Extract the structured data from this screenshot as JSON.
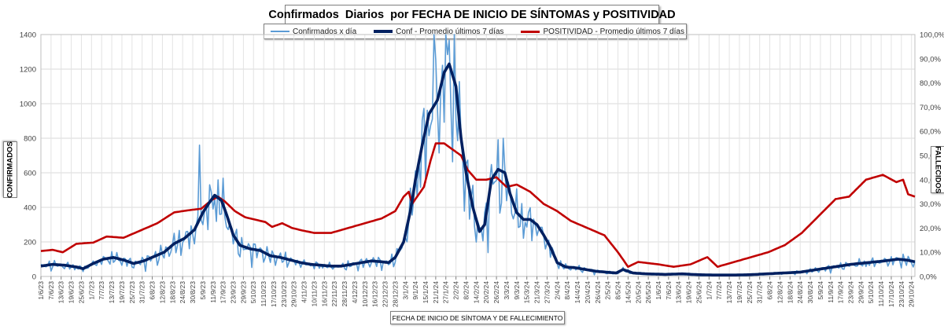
{
  "chart_data": {
    "type": "line",
    "title": "Confirmados  Diarios  por FECHA DE INICIO DE SÍNTOMAS y POSITIVIDAD",
    "xlabel": "FECHA DE INICIO DE SÍNTOMA  Y DE FALLECIMIENTO",
    "ylabel_left": "CONFIRMADOS",
    "ylabel_right": "FALLECIDOS",
    "ylim_left": [
      0,
      1400
    ],
    "yticks_left": [
      "0",
      "200",
      "400",
      "600",
      "800",
      "1000",
      "1200",
      "1400"
    ],
    "ylim_right": [
      0,
      100
    ],
    "yticks_right": [
      "0,0%",
      "10,0%",
      "20,0%",
      "30,0%",
      "40,0%",
      "50,0%",
      "60,0%",
      "70,0%",
      "80,0%",
      "90,0%",
      "100,0%"
    ],
    "date_start": "2023-06-01",
    "date_end": "2024-10-31",
    "x_tick_labels": [
      "1/6/23",
      "7/6/23",
      "13/6/23",
      "19/6/23",
      "25/6/23",
      "1/7/23",
      "7/7/23",
      "13/7/23",
      "19/7/23",
      "25/7/23",
      "31/7/23",
      "6/8/23",
      "12/8/23",
      "18/8/23",
      "24/8/23",
      "30/8/23",
      "5/9/23",
      "11/9/23",
      "17/9/23",
      "23/9/23",
      "29/9/23",
      "5/10/23",
      "11/10/23",
      "17/10/23",
      "23/10/23",
      "29/10/23",
      "4/11/23",
      "10/11/23",
      "16/11/23",
      "22/11/23",
      "28/11/23",
      "4/12/23",
      "10/12/23",
      "16/12/23",
      "22/12/23",
      "28/12/23",
      "3/1/24",
      "9/1/24",
      "15/1/24",
      "21/1/24",
      "27/1/24",
      "2/2/24",
      "8/2/24",
      "14/2/24",
      "20/2/24",
      "26/2/24",
      "3/3/24",
      "9/3/24",
      "15/3/24",
      "21/3/24",
      "27/3/24",
      "2/4/24",
      "8/4/24",
      "14/4/24",
      "20/4/24",
      "26/4/24",
      "2/5/24",
      "8/5/24",
      "14/5/24",
      "20/5/24",
      "26/5/24",
      "1/6/24",
      "7/6/24",
      "13/6/24",
      "19/6/24",
      "25/6/24",
      "1/7/24",
      "7/7/24",
      "13/7/24",
      "19/7/24",
      "25/7/24",
      "31/7/24",
      "6/8/24",
      "12/8/24",
      "18/8/24",
      "24/8/24",
      "30/8/24",
      "5/9/24",
      "11/9/24",
      "17/9/24",
      "23/9/24",
      "29/9/24",
      "5/10/24",
      "11/10/24",
      "17/10/24",
      "23/10/24",
      "29/10/24"
    ],
    "series": [
      {
        "name": "Confirmados x día",
        "axis": "left",
        "color": "#5b9bd5",
        "shape": "daily noisy (±35% weekday variation) around the 7-day average; spikes to ~760 on 3/9/23 and >1400 in mid-Jan 2024",
        "peaks": [
          {
            "date": "2023-09-03",
            "value": 760
          },
          {
            "date": "2024-01-20",
            "value": 1400
          },
          {
            "date": "2024-01-27",
            "value": 1400
          }
        ]
      },
      {
        "name": "Conf - Promedio últimos 7 días",
        "axis": "left",
        "color": "#002060",
        "points": [
          [
            "2023-06-01",
            60
          ],
          [
            "2023-06-08",
            70
          ],
          [
            "2023-06-15",
            65
          ],
          [
            "2023-06-22",
            55
          ],
          [
            "2023-06-26",
            45
          ],
          [
            "2023-07-02",
            75
          ],
          [
            "2023-07-08",
            100
          ],
          [
            "2023-07-14",
            110
          ],
          [
            "2023-07-20",
            95
          ],
          [
            "2023-07-26",
            75
          ],
          [
            "2023-08-01",
            90
          ],
          [
            "2023-08-07",
            115
          ],
          [
            "2023-08-13",
            140
          ],
          [
            "2023-08-19",
            190
          ],
          [
            "2023-08-25",
            220
          ],
          [
            "2023-08-31",
            270
          ],
          [
            "2023-09-05",
            370
          ],
          [
            "2023-09-09",
            430
          ],
          [
            "2023-09-12",
            470
          ],
          [
            "2023-09-16",
            440
          ],
          [
            "2023-09-19",
            360
          ],
          [
            "2023-09-23",
            240
          ],
          [
            "2023-09-27",
            180
          ],
          [
            "2023-10-03",
            160
          ],
          [
            "2023-10-09",
            150
          ],
          [
            "2023-10-15",
            120
          ],
          [
            "2023-10-21",
            110
          ],
          [
            "2023-10-27",
            95
          ],
          [
            "2023-11-02",
            80
          ],
          [
            "2023-11-08",
            70
          ],
          [
            "2023-11-14",
            65
          ],
          [
            "2023-11-20",
            60
          ],
          [
            "2023-11-26",
            60
          ],
          [
            "2023-12-02",
            70
          ],
          [
            "2023-12-08",
            80
          ],
          [
            "2023-12-14",
            90
          ],
          [
            "2023-12-20",
            85
          ],
          [
            "2023-12-24",
            80
          ],
          [
            "2023-12-28",
            110
          ],
          [
            "2024-01-02",
            200
          ],
          [
            "2024-01-06",
            380
          ],
          [
            "2024-01-09",
            560
          ],
          [
            "2024-01-13",
            760
          ],
          [
            "2024-01-17",
            940
          ],
          [
            "2024-01-22",
            1020
          ],
          [
            "2024-01-26",
            1180
          ],
          [
            "2024-01-29",
            1230
          ],
          [
            "2024-02-02",
            1100
          ],
          [
            "2024-02-05",
            800
          ],
          [
            "2024-02-08",
            600
          ],
          [
            "2024-02-12",
            400
          ],
          [
            "2024-02-16",
            260
          ],
          [
            "2024-02-19",
            300
          ],
          [
            "2024-02-23",
            560
          ],
          [
            "2024-02-27",
            620
          ],
          [
            "2024-03-02",
            600
          ],
          [
            "2024-03-05",
            480
          ],
          [
            "2024-03-09",
            370
          ],
          [
            "2024-03-13",
            330
          ],
          [
            "2024-03-17",
            330
          ],
          [
            "2024-03-21",
            300
          ],
          [
            "2024-03-25",
            240
          ],
          [
            "2024-03-29",
            170
          ],
          [
            "2024-04-02",
            80
          ],
          [
            "2024-04-07",
            55
          ],
          [
            "2024-04-13",
            50
          ],
          [
            "2024-04-19",
            40
          ],
          [
            "2024-04-25",
            30
          ],
          [
            "2024-05-01",
            25
          ],
          [
            "2024-05-07",
            20
          ],
          [
            "2024-05-11",
            40
          ],
          [
            "2024-05-17",
            20
          ],
          [
            "2024-05-25",
            15
          ],
          [
            "2024-06-05",
            12
          ],
          [
            "2024-06-15",
            15
          ],
          [
            "2024-06-25",
            10
          ],
          [
            "2024-07-05",
            8
          ],
          [
            "2024-07-15",
            8
          ],
          [
            "2024-07-25",
            10
          ],
          [
            "2024-08-04",
            15
          ],
          [
            "2024-08-14",
            20
          ],
          [
            "2024-08-24",
            25
          ],
          [
            "2024-09-03",
            40
          ],
          [
            "2024-09-13",
            55
          ],
          [
            "2024-09-23",
            70
          ],
          [
            "2024-10-03",
            80
          ],
          [
            "2024-10-13",
            90
          ],
          [
            "2024-10-21",
            100
          ],
          [
            "2024-10-26",
            95
          ],
          [
            "2024-10-31",
            85
          ]
        ]
      },
      {
        "name": "POSITIVIDAD - Promedio últimos 7 días",
        "axis": "right",
        "color": "#c00000",
        "points": [
          [
            "2023-06-01",
            10.5
          ],
          [
            "2023-06-08",
            11
          ],
          [
            "2023-06-14",
            10
          ],
          [
            "2023-06-22",
            13.5
          ],
          [
            "2023-07-02",
            14
          ],
          [
            "2023-07-10",
            16.5
          ],
          [
            "2023-07-20",
            16
          ],
          [
            "2023-07-30",
            19
          ],
          [
            "2023-08-09",
            22
          ],
          [
            "2023-08-19",
            26.5
          ],
          [
            "2023-08-29",
            27.5
          ],
          [
            "2023-09-04",
            28
          ],
          [
            "2023-09-10",
            31.5
          ],
          [
            "2023-09-14",
            33
          ],
          [
            "2023-09-18",
            31
          ],
          [
            "2023-09-24",
            27
          ],
          [
            "2023-09-30",
            24.5
          ],
          [
            "2023-10-06",
            23.5
          ],
          [
            "2023-10-12",
            22.5
          ],
          [
            "2023-10-16",
            20.5
          ],
          [
            "2023-10-22",
            22
          ],
          [
            "2023-10-28",
            20
          ],
          [
            "2023-11-03",
            19
          ],
          [
            "2023-11-10",
            18
          ],
          [
            "2023-11-20",
            18
          ],
          [
            "2023-11-30",
            20
          ],
          [
            "2023-12-10",
            22
          ],
          [
            "2023-12-20",
            24
          ],
          [
            "2023-12-28",
            27
          ],
          [
            "2024-01-02",
            33
          ],
          [
            "2024-01-05",
            35
          ],
          [
            "2024-01-07",
            30
          ],
          [
            "2024-01-10",
            33
          ],
          [
            "2024-01-14",
            37
          ],
          [
            "2024-01-18",
            48
          ],
          [
            "2024-01-21",
            55
          ],
          [
            "2024-01-26",
            55
          ],
          [
            "2024-02-01",
            52
          ],
          [
            "2024-02-05",
            50
          ],
          [
            "2024-02-09",
            44
          ],
          [
            "2024-02-14",
            40
          ],
          [
            "2024-02-20",
            40
          ],
          [
            "2024-02-26",
            41
          ],
          [
            "2024-03-03",
            37
          ],
          [
            "2024-03-09",
            38
          ],
          [
            "2024-03-17",
            35
          ],
          [
            "2024-03-25",
            30
          ],
          [
            "2024-04-02",
            27
          ],
          [
            "2024-04-10",
            23
          ],
          [
            "2024-04-20",
            20
          ],
          [
            "2024-04-30",
            17
          ],
          [
            "2024-05-08",
            10
          ],
          [
            "2024-05-14",
            4
          ],
          [
            "2024-05-20",
            6
          ],
          [
            "2024-06-01",
            5
          ],
          [
            "2024-06-10",
            4
          ],
          [
            "2024-06-20",
            5
          ],
          [
            "2024-06-30",
            8
          ],
          [
            "2024-07-06",
            4
          ],
          [
            "2024-07-16",
            6
          ],
          [
            "2024-07-26",
            8
          ],
          [
            "2024-08-05",
            10
          ],
          [
            "2024-08-15",
            13
          ],
          [
            "2024-08-25",
            18
          ],
          [
            "2024-09-04",
            25
          ],
          [
            "2024-09-14",
            32
          ],
          [
            "2024-09-22",
            33
          ],
          [
            "2024-10-02",
            40
          ],
          [
            "2024-10-12",
            42
          ],
          [
            "2024-10-20",
            39
          ],
          [
            "2024-10-24",
            40
          ],
          [
            "2024-10-27",
            34
          ],
          [
            "2024-10-31",
            33
          ]
        ]
      }
    ]
  }
}
